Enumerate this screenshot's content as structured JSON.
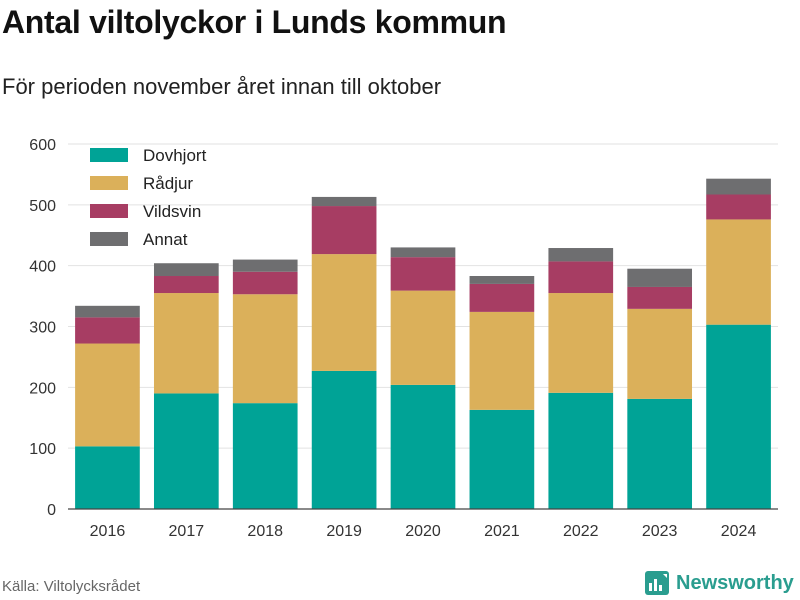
{
  "header": {
    "title": "Antal viltolyckor i Lunds kommun",
    "subtitle": "För perioden november året innan till oktober"
  },
  "footer": {
    "source": "Källa: Viltolycksrådet",
    "brand": "Newsworthy"
  },
  "colors": {
    "Dovhjort": "#00a396",
    "Rådjur": "#dbb05a",
    "Vildsvin": "#a73d63",
    "Annat": "#6e6e70",
    "grid": "#e2e2e2"
  },
  "chart_data": {
    "type": "bar",
    "stacked": true,
    "categories": [
      "2016",
      "2017",
      "2018",
      "2019",
      "2020",
      "2021",
      "2022",
      "2023",
      "2024"
    ],
    "series": [
      {
        "name": "Dovhjort",
        "values": [
          103,
          190,
          174,
          227,
          204,
          163,
          191,
          181,
          303
        ]
      },
      {
        "name": "Rådjur",
        "values": [
          169,
          165,
          179,
          192,
          155,
          161,
          164,
          148,
          173
        ]
      },
      {
        "name": "Vildsvin",
        "values": [
          43,
          28,
          37,
          79,
          55,
          46,
          52,
          36,
          41
        ]
      },
      {
        "name": "Annat",
        "values": [
          19,
          21,
          20,
          15,
          16,
          13,
          22,
          30,
          26
        ]
      }
    ],
    "ylim": [
      0,
      600
    ],
    "yticks": [
      0,
      100,
      200,
      300,
      400,
      500,
      600
    ],
    "grid": true,
    "legend_position": "top-left"
  }
}
